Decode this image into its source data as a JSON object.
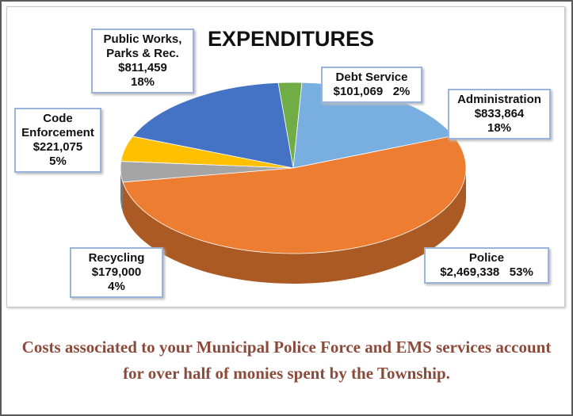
{
  "chart_data": {
    "type": "pie",
    "title": "EXPENDITURES",
    "categories": [
      "Debt Service",
      "Administration",
      "Police",
      "Recycling",
      "Code Enforcement",
      "Public Works, Parks & Rec."
    ],
    "values": [
      101069,
      833864,
      2469338,
      179000,
      221075,
      811459
    ],
    "value_labels": [
      "$101,069",
      "$833,864",
      "$2,469,338",
      "$179,000",
      "$221,075",
      "$811,459"
    ],
    "shares": [
      2,
      18,
      53,
      4,
      5,
      18
    ],
    "share_labels": [
      "2%",
      "18%",
      "53%",
      "4%",
      "5%",
      "18%"
    ],
    "colors": [
      "#70ad47",
      "#79aee0",
      "#ed7d31",
      "#a5a5a5",
      "#ffc000",
      "#4472c4"
    ]
  },
  "caption": "Costs associated to your Municipal Police Force and EMS services account for over half of monies spent by the Township."
}
